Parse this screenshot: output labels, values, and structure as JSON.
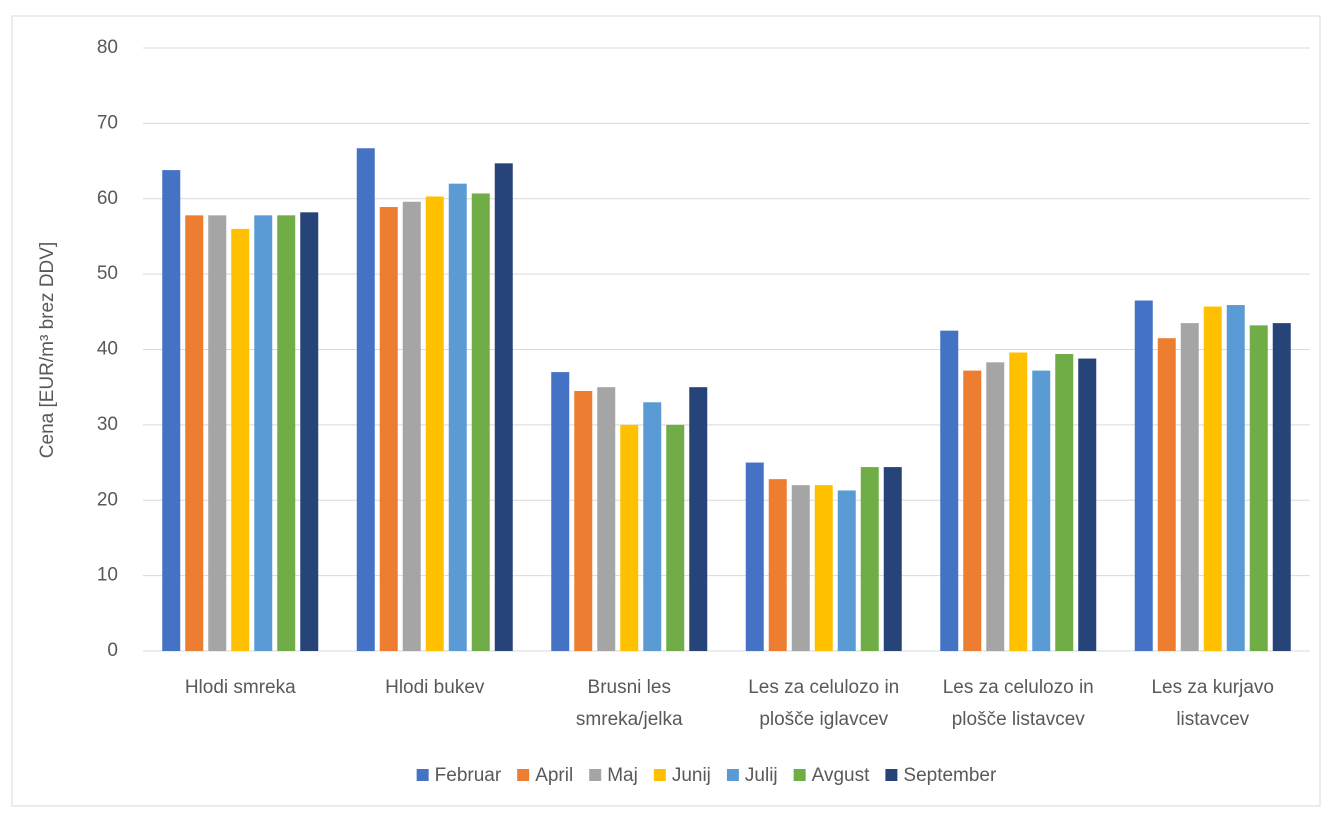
{
  "chart_data": {
    "type": "bar",
    "y_label": "Cena [EUR/m³ brez DDV]",
    "categories": [
      [
        "Hlodi smreka"
      ],
      [
        "Hlodi bukev"
      ],
      [
        "Brusni les",
        "smreka/jelka"
      ],
      [
        "Les za celulozo in",
        "plošče iglavcev"
      ],
      [
        "Les za celulozo in",
        "plošče listavcev"
      ],
      [
        "Les za kurjavo",
        "listavcev"
      ]
    ],
    "series": [
      {
        "name": "Februar",
        "color": "#4472c4",
        "values": [
          63.8,
          66.7,
          37,
          25,
          42.5,
          46.5
        ]
      },
      {
        "name": "April",
        "color": "#ed7d31",
        "values": [
          57.8,
          58.9,
          34.5,
          22.8,
          37.2,
          41.5
        ]
      },
      {
        "name": "Maj",
        "color": "#a5a5a5",
        "values": [
          57.8,
          59.6,
          35,
          22,
          38.3,
          43.5
        ]
      },
      {
        "name": "Junij",
        "color": "#ffc000",
        "values": [
          56,
          60.3,
          30,
          22,
          39.6,
          45.7
        ]
      },
      {
        "name": "Julij",
        "color": "#5b9bd5",
        "values": [
          57.8,
          62,
          33,
          21.3,
          37.2,
          45.9
        ]
      },
      {
        "name": "Avgust",
        "color": "#70ad47",
        "values": [
          57.8,
          60.7,
          30,
          24.4,
          39.4,
          43.2
        ]
      },
      {
        "name": "September",
        "color": "#264478",
        "values": [
          58.2,
          64.7,
          35,
          24.4,
          38.8,
          43.5
        ]
      }
    ],
    "ylim": [
      0,
      80
    ],
    "yticks": [
      0,
      10,
      20,
      30,
      40,
      50,
      60,
      70,
      80
    ],
    "grid": true,
    "legend": "bottom"
  }
}
